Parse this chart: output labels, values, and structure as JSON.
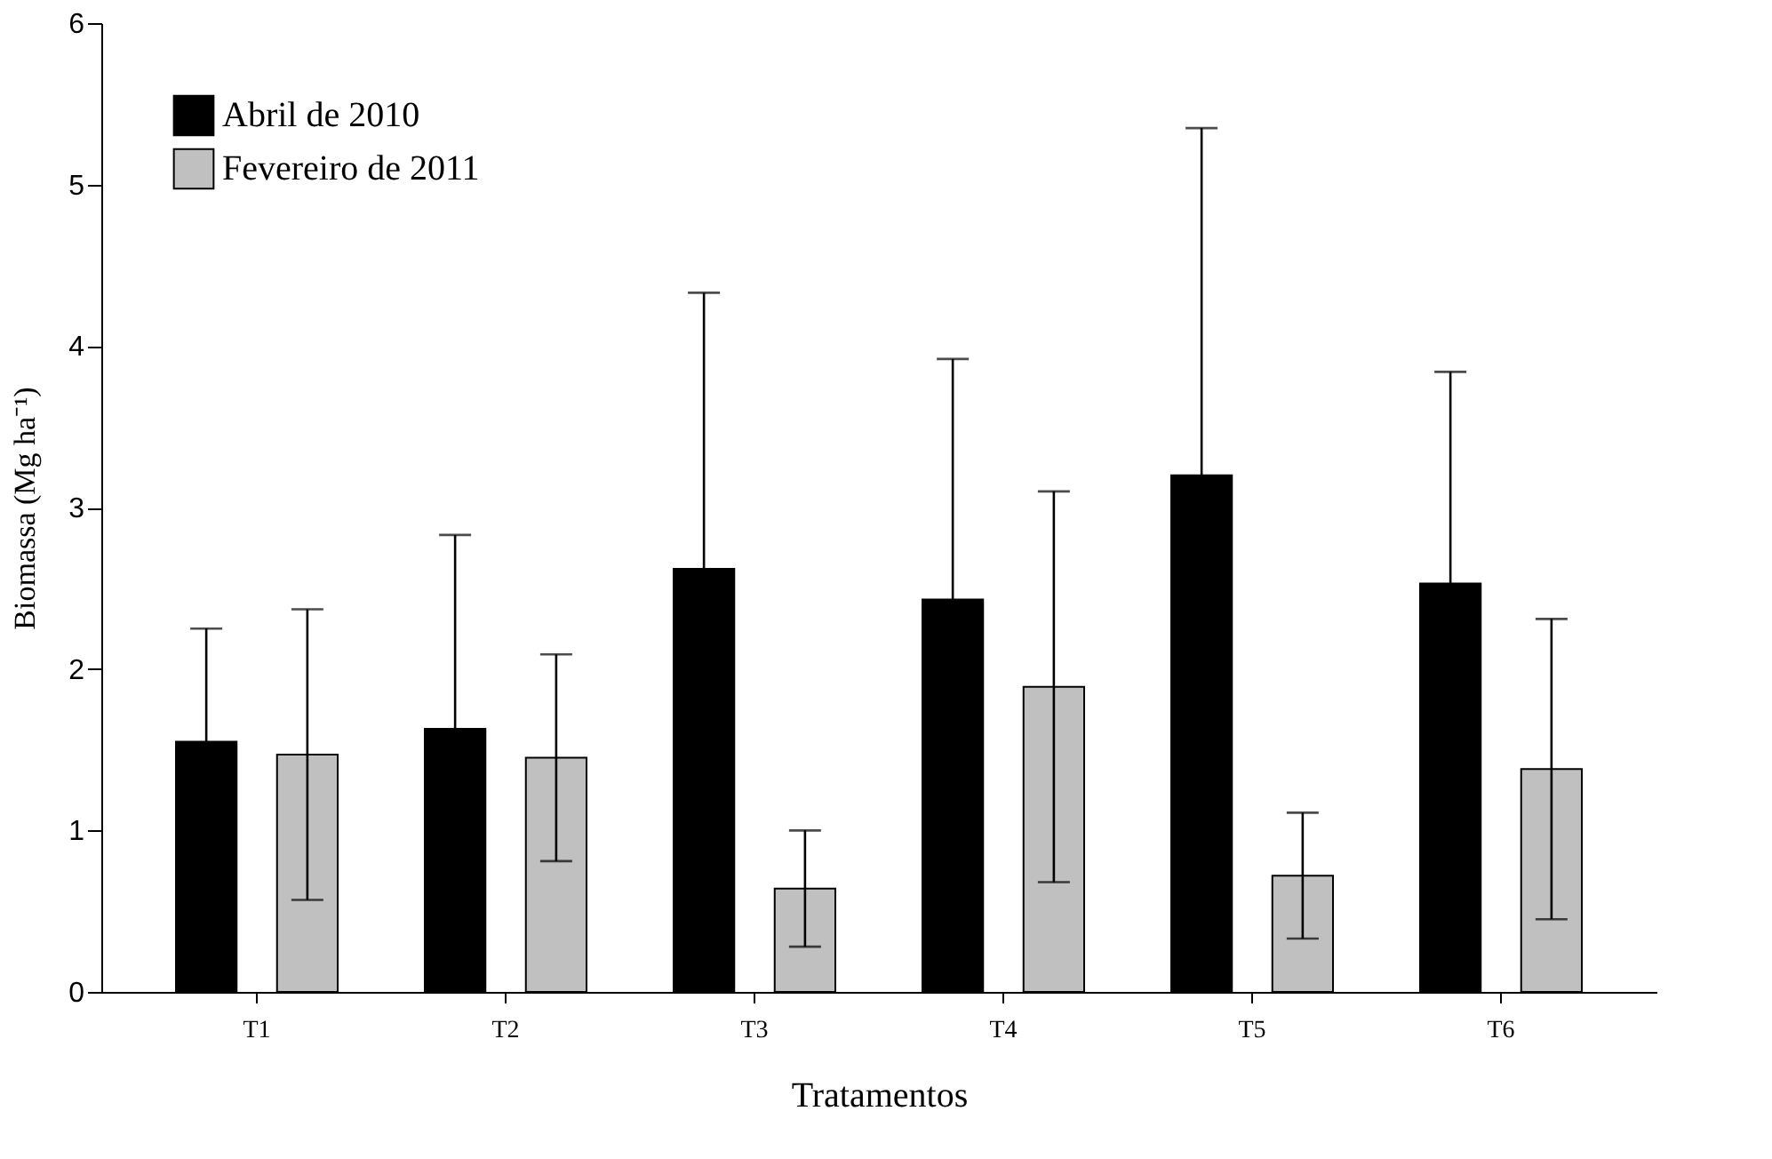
{
  "chart_data": {
    "type": "bar",
    "xlabel": "Tratamentos",
    "ylabel": "Biomassa (Mg ha⁻¹)",
    "categories": [
      "T1",
      "T2",
      "T3",
      "T4",
      "T5",
      "T6"
    ],
    "series": [
      {
        "name": "Abril de 2010",
        "color": "#000000",
        "values": [
          1.55,
          1.63,
          2.62,
          2.43,
          3.2,
          2.53
        ],
        "errors": [
          0.7,
          1.2,
          1.71,
          1.49,
          2.15,
          1.31
        ]
      },
      {
        "name": "Fevereiro de 2011",
        "color": "#c0c0c0",
        "values": [
          1.47,
          1.45,
          0.64,
          1.89,
          0.72,
          1.38
        ],
        "errors": [
          0.9,
          0.64,
          0.36,
          1.21,
          0.39,
          0.93
        ]
      }
    ],
    "ylim": [
      0,
      6
    ],
    "yticks": [
      0,
      1,
      2,
      3,
      4,
      5,
      6
    ],
    "grid": false,
    "legend": "top left"
  }
}
